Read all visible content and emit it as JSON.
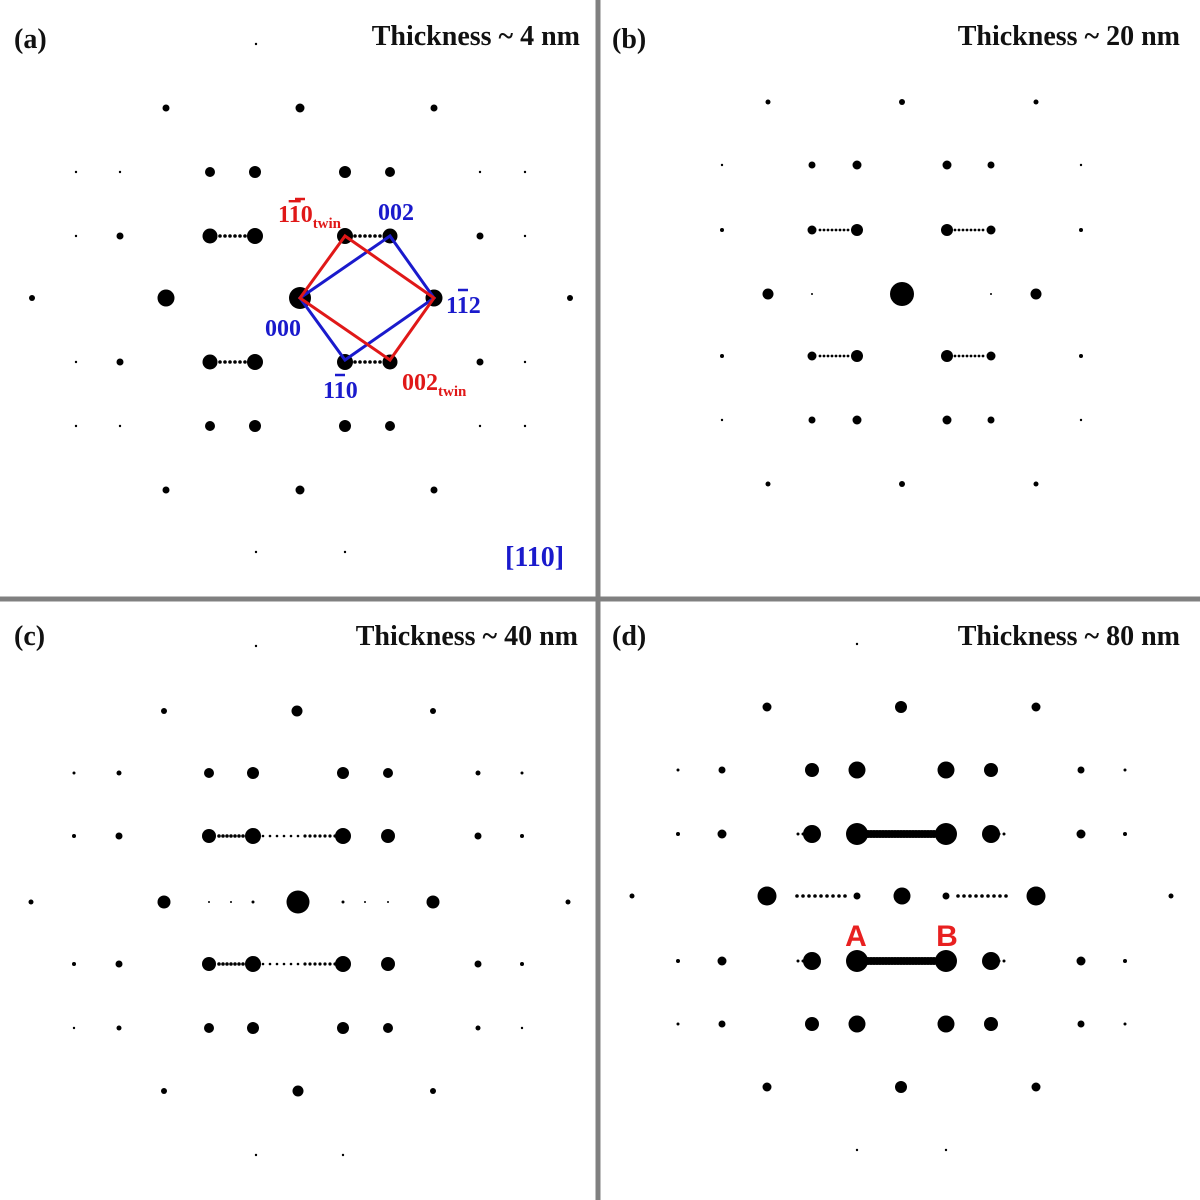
{
  "colors": {
    "divider": "#808080",
    "spot": "#000000",
    "matrix": "#1a1acc",
    "twin": "#e01818",
    "marker": "#e82020"
  },
  "panels": [
    {
      "id": "a",
      "label": "(a)",
      "thickness": "Thickness ~ 4 nm",
      "zone_axis": "[110]",
      "indices": {
        "matrix_000": "000",
        "matrix_002": "002",
        "matrix_1b2": [
          "1",
          "1",
          "2"
        ],
        "matrix_1b0": [
          "1",
          "1",
          "0"
        ],
        "twin_1b0": [
          "1",
          "1",
          "0"
        ],
        "twin_002": "002",
        "twin_sub": "twin"
      }
    },
    {
      "id": "b",
      "label": "(b)",
      "thickness": "Thickness ~ 20 nm"
    },
    {
      "id": "c",
      "label": "(c)",
      "thickness": "Thickness ~ 40 nm"
    },
    {
      "id": "d",
      "label": "(d)",
      "thickness": "Thickness ~ 80 nm",
      "markers": [
        "A",
        "B"
      ]
    }
  ]
}
